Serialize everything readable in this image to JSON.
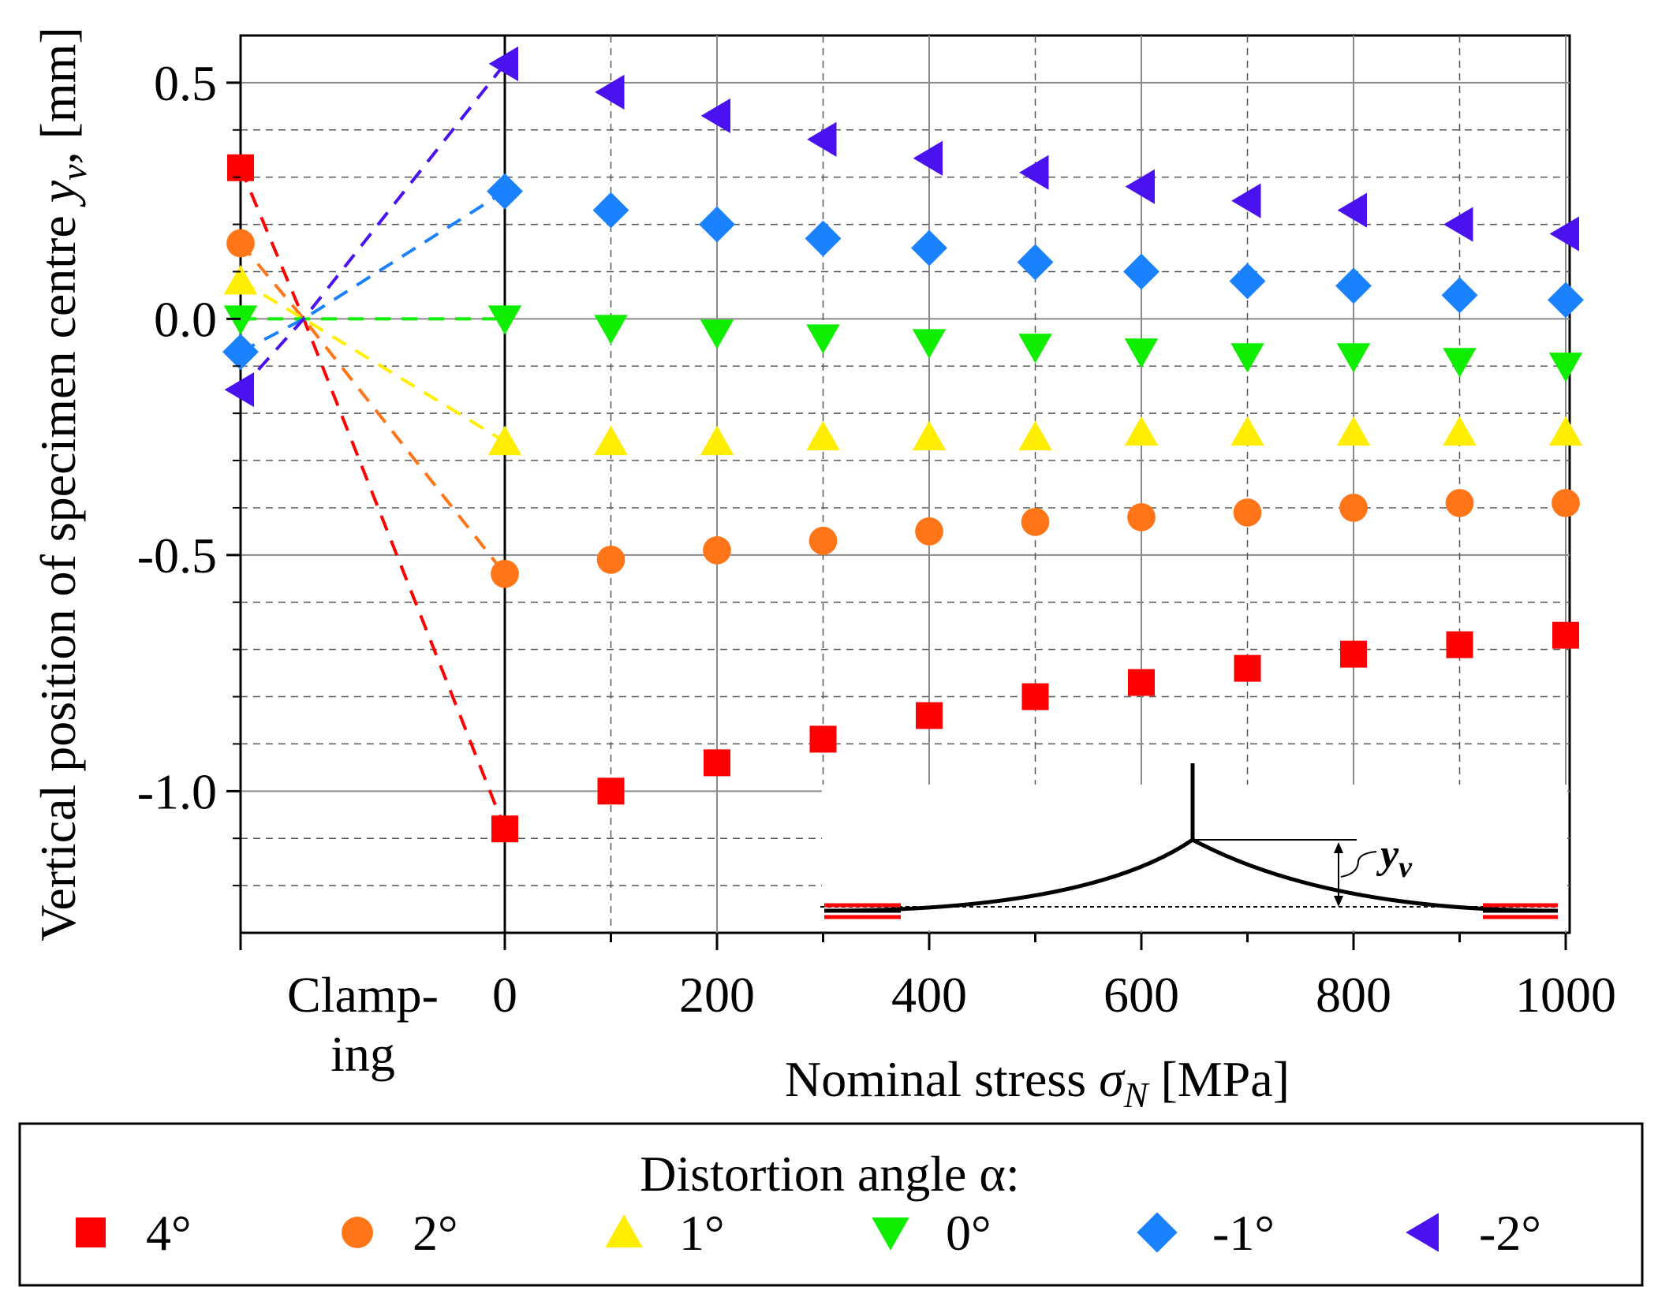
{
  "chart_data": {
    "type": "scatter",
    "ylabel_main": "Vertical position of specimen centre ",
    "ylabel_var": "y",
    "ylabel_sub": "v",
    "ylabel_unit": ", [mm]",
    "xlabel_main": "Nominal stress ",
    "xlabel_var": "σ",
    "xlabel_sub": "N",
    "xlabel_unit": " [MPa]",
    "clamping_label_1": "Clamp-",
    "clamping_label_2": "ing",
    "ylim": [
      -1.3,
      0.6
    ],
    "xlim": [
      0,
      1000
    ],
    "y_ticks": [
      "0.5",
      "0.0",
      "-0.5",
      "-1.0"
    ],
    "y_tick_values": [
      0.5,
      0.0,
      -0.5,
      -1.0
    ],
    "x_ticks": [
      "0",
      "200",
      "400",
      "600",
      "800",
      "1000"
    ],
    "x_tick_values": [
      0,
      200,
      400,
      600,
      800,
      1000
    ],
    "x": [
      0,
      100,
      200,
      300,
      400,
      500,
      600,
      700,
      800,
      900,
      1000
    ],
    "series": [
      {
        "name": "4°",
        "marker": "square",
        "color": "#ff0000",
        "clamp_before": 0.32,
        "values": [
          -1.08,
          -1.0,
          -0.94,
          -0.89,
          -0.84,
          -0.8,
          -0.77,
          -0.74,
          -0.71,
          -0.69,
          -0.67
        ]
      },
      {
        "name": "2°",
        "marker": "circle",
        "color": "#ff7518",
        "clamp_before": 0.16,
        "values": [
          -0.54,
          -0.51,
          -0.49,
          -0.47,
          -0.45,
          -0.43,
          -0.42,
          -0.41,
          -0.4,
          -0.39,
          -0.39
        ]
      },
      {
        "name": "1°",
        "marker": "triangle-up",
        "color": "#ffee00",
        "clamp_before": 0.08,
        "values": [
          -0.26,
          -0.26,
          -0.26,
          -0.25,
          -0.25,
          -0.25,
          -0.24,
          -0.24,
          -0.24,
          -0.24,
          -0.24
        ]
      },
      {
        "name": "0°",
        "marker": "triangle-down",
        "color": "#10ee00",
        "clamp_before": 0.0,
        "values": [
          0.0,
          -0.02,
          -0.03,
          -0.04,
          -0.05,
          -0.06,
          -0.07,
          -0.08,
          -0.08,
          -0.09,
          -0.1
        ]
      },
      {
        "name": "-1°",
        "marker": "diamond",
        "color": "#1a82ff",
        "clamp_before": -0.07,
        "values": [
          0.27,
          0.23,
          0.2,
          0.17,
          0.15,
          0.12,
          0.1,
          0.08,
          0.07,
          0.05,
          0.04
        ]
      },
      {
        "name": "-2°",
        "marker": "triangle-left",
        "color": "#4a12ee",
        "clamp_before": -0.15,
        "values": [
          0.54,
          0.48,
          0.43,
          0.38,
          0.34,
          0.31,
          0.28,
          0.25,
          0.23,
          0.2,
          0.18
        ]
      }
    ],
    "legend": {
      "title": "Distortion angle α:",
      "placement": "bottom"
    },
    "inset": {
      "label_var": "y",
      "label_sub": "v"
    }
  }
}
